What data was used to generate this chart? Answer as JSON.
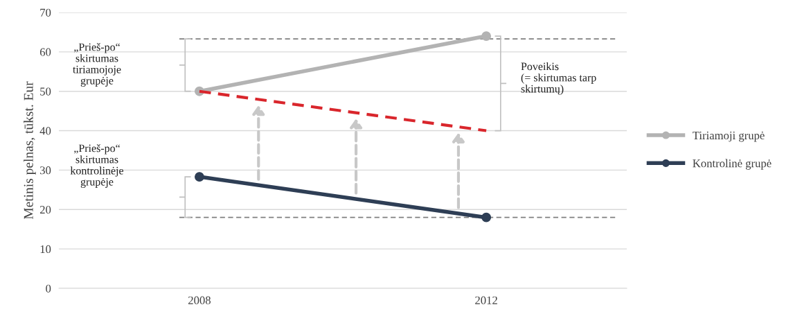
{
  "chart_data": {
    "type": "line",
    "ylabel": "Metinis pelnas, tūkst. Eur",
    "categories": [
      "2008",
      "2012"
    ],
    "series": [
      {
        "name": "Tiriamoji grupė",
        "color": "#b3b3b3",
        "values": [
          50,
          64
        ],
        "marker": "circle",
        "line_style": "solid"
      },
      {
        "name": "Kontrolinė grupė",
        "color": "#2e3e55",
        "values": [
          28.3,
          18
        ],
        "marker": "circle",
        "line_style": "solid"
      },
      {
        "color": "#d9262c",
        "values": [
          50,
          40
        ],
        "marker": "none",
        "line_style": "dashed"
      }
    ],
    "ylim": [
      0,
      70
    ],
    "yticks": [
      0,
      10,
      20,
      30,
      40,
      50,
      60,
      70
    ],
    "grid": "y",
    "legend": "right",
    "ref_lines": [
      {
        "axis": "y",
        "value": 63.3,
        "color": "#808080",
        "line_style": "dashed"
      },
      {
        "axis": "y",
        "value": 18,
        "color": "#808080",
        "line_style": "dashed"
      }
    ],
    "annotations": [
      "„Prieš-po“\nskirtumas\ntiriamojoje\ngrupėje",
      "„Prieš-po“\nskirtumas\nkontrolinėje\ngrupėje",
      "Poveikis\n(= skirtumas tarp\nskirtumų)"
    ]
  }
}
